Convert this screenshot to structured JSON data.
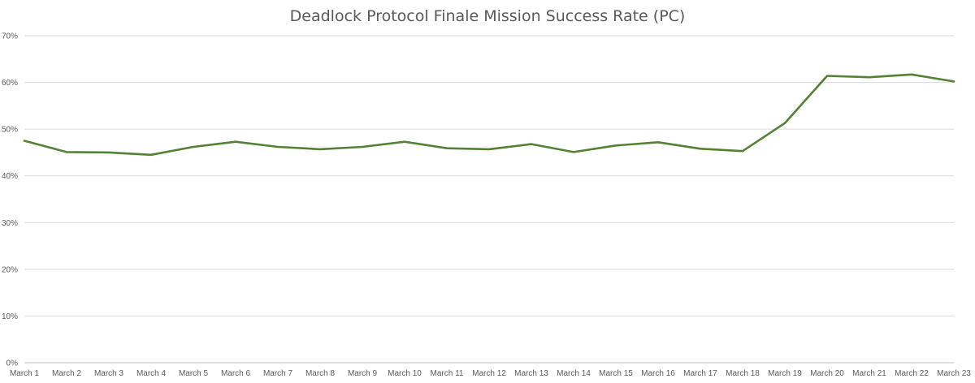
{
  "chart_data": {
    "type": "line",
    "title": "Deadlock Protocol Finale Mission Success Rate (PC)",
    "xlabel": "",
    "ylabel": "",
    "categories": [
      "March 1",
      "March 2",
      "March 3",
      "March 4",
      "March 5",
      "March 6",
      "March 7",
      "March 8",
      "March 9",
      "March 10",
      "March 11",
      "March 12",
      "March 13",
      "March 14",
      "March 15",
      "March 16",
      "March 17",
      "March 18",
      "March 19",
      "March 20",
      "March 21",
      "March 22",
      "March 23"
    ],
    "series": [
      {
        "values": [
          47.5,
          45.1,
          45.0,
          44.5,
          46.2,
          47.3,
          46.2,
          45.7,
          46.2,
          47.3,
          45.9,
          45.7,
          46.8,
          45.1,
          46.5,
          47.2,
          45.8,
          45.3,
          51.3,
          61.4,
          61.1,
          61.7,
          60.2
        ]
      }
    ],
    "ylim": [
      0,
      70
    ],
    "yticks": [
      0,
      10,
      20,
      30,
      40,
      50,
      60,
      70
    ],
    "ytick_labels": [
      "0%",
      "10%",
      "20%",
      "30%",
      "40%",
      "50%",
      "60%",
      "70%"
    ],
    "grid": true,
    "legend": "none",
    "line_color": "#548235"
  }
}
